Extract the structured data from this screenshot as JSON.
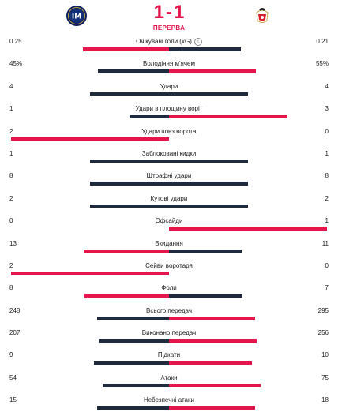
{
  "match": {
    "home_logo": "inter-milan-crest",
    "away_logo": "benfica-crest",
    "home_score": "1",
    "separator": "-",
    "away_score": "1",
    "period": "ПЕРЕРВА"
  },
  "colors": {
    "leader": "#e4164b",
    "other": "#1f2a3d"
  },
  "stats": [
    {
      "label": "Очікувані голи (xG)",
      "home": "0.25",
      "away": "0.21",
      "home_share": 0.543,
      "away_share": 0.457,
      "info": true
    },
    {
      "label": "Володіння м'ячем",
      "home": "45%",
      "away": "55%",
      "home_share": 0.45,
      "away_share": 0.55
    },
    {
      "label": "Удари",
      "home": "4",
      "away": "4",
      "home_share": 0.5,
      "away_share": 0.5
    },
    {
      "label": "Удари в площину воріт",
      "home": "1",
      "away": "3",
      "home_share": 0.25,
      "away_share": 0.75
    },
    {
      "label": "Удари повз ворота",
      "home": "2",
      "away": "0",
      "home_share": 1.0,
      "away_share": 0.0
    },
    {
      "label": "Заблоковані кидки",
      "home": "1",
      "away": "1",
      "home_share": 0.5,
      "away_share": 0.5
    },
    {
      "label": "Штрафні удари",
      "home": "8",
      "away": "8",
      "home_share": 0.5,
      "away_share": 0.5
    },
    {
      "label": "Кутові удари",
      "home": "2",
      "away": "2",
      "home_share": 0.5,
      "away_share": 0.5
    },
    {
      "label": "Офсайди",
      "home": "0",
      "away": "1",
      "home_share": 0.0,
      "away_share": 1.0
    },
    {
      "label": "Вкидання",
      "home": "13",
      "away": "11",
      "home_share": 0.542,
      "away_share": 0.458
    },
    {
      "label": "Сейви воротаря",
      "home": "2",
      "away": "0",
      "home_share": 1.0,
      "away_share": 0.0
    },
    {
      "label": "Фоли",
      "home": "8",
      "away": "7",
      "home_share": 0.533,
      "away_share": 0.467
    },
    {
      "label": "Всього передач",
      "home": "248",
      "away": "295",
      "home_share": 0.457,
      "away_share": 0.543
    },
    {
      "label": "Виконано передач",
      "home": "207",
      "away": "256",
      "home_share": 0.447,
      "away_share": 0.553
    },
    {
      "label": "Підкати",
      "home": "9",
      "away": "10",
      "home_share": 0.474,
      "away_share": 0.526
    },
    {
      "label": "Атаки",
      "home": "54",
      "away": "75",
      "home_share": 0.419,
      "away_share": 0.581
    },
    {
      "label": "Небезпечні атаки",
      "home": "15",
      "away": "18",
      "home_share": 0.455,
      "away_share": 0.545
    }
  ]
}
